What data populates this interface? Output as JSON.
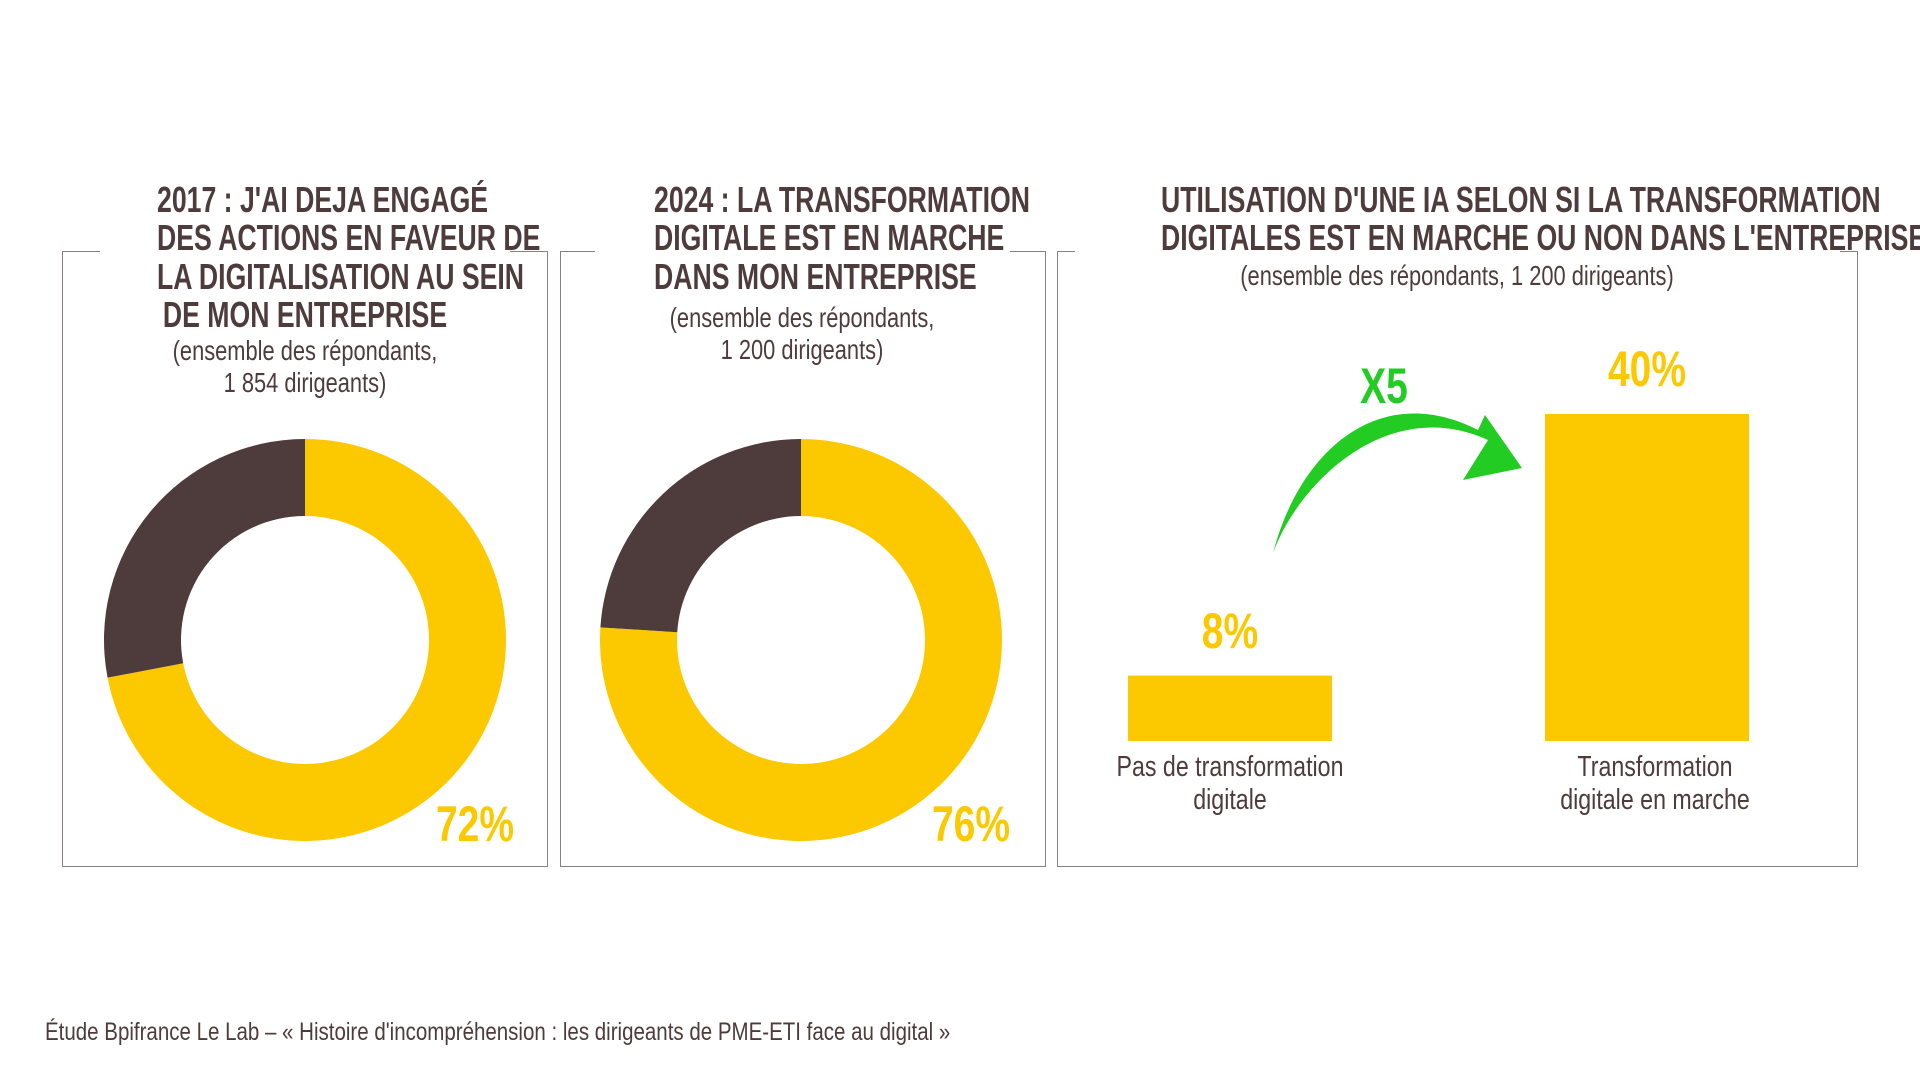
{
  "colors": {
    "yes": "#fcc900",
    "no": "#4e3b3b",
    "arrow": "#22cc22"
  },
  "chart_data": [
    {
      "type": "pie",
      "variant": "donut",
      "title": [
        "2017 : J'AI DEJA ENGAGÉ",
        "DES ACTIONS EN FAVEUR DE",
        "LA DIGITALISATION AU SEIN",
        "DE MON ENTREPRISE"
      ],
      "subtitle": [
        "(ensemble des répondants,",
        "1 854 dirigeants)"
      ],
      "values": [
        72,
        28
      ],
      "label": "72%"
    },
    {
      "type": "pie",
      "variant": "donut",
      "title": [
        "2024 : LA TRANSFORMATION",
        "DIGITALE EST EN MARCHE",
        "DANS MON ENTREPRISE"
      ],
      "subtitle": [
        "(ensemble des répondants,",
        "1 200 dirigeants)"
      ],
      "values": [
        76,
        24
      ],
      "label": "76%"
    },
    {
      "type": "bar",
      "title": [
        "UTILISATION D'UNE IA SELON SI LA TRANSFORMATION",
        "DIGITALES EST EN MARCHE OU NON DANS L'ENTREPRISE"
      ],
      "subtitle": [
        "(ensemble des répondants, 1 200 dirigeants)"
      ],
      "categories": [
        [
          "Pas de transformation",
          "digitale"
        ],
        [
          "Transformation",
          "digitale en marche"
        ]
      ],
      "values": [
        8,
        40
      ],
      "labels": [
        "8%",
        "40%"
      ],
      "annotation": "X5"
    }
  ],
  "footer": "Étude Bpifrance Le Lab – « Histoire d'incompréhension : les dirigeants de PME-ETI face au digital »"
}
